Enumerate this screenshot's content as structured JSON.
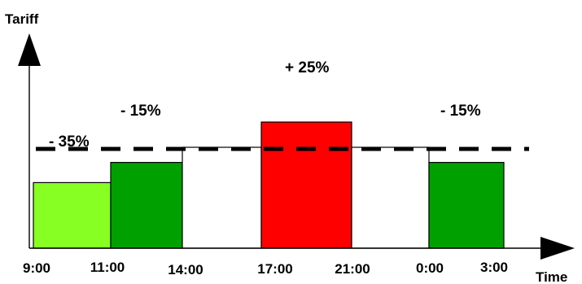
{
  "chart_data": {
    "type": "bar",
    "xlabel": "Time",
    "ylabel": "Tariff",
    "x_ticks": [
      "9:00",
      "11:00",
      "14:00",
      "17:00",
      "21:00",
      "0:00",
      "3:00"
    ],
    "baseline_level": 100,
    "ylim": [
      0,
      150
    ],
    "bars": [
      {
        "from": "9:00",
        "to": "11:00",
        "value": 65,
        "label": "- 35%",
        "color": "#88ff22"
      },
      {
        "from": "11:00",
        "to": "14:00",
        "value": 85,
        "label": "- 15%",
        "color": "#00a000"
      },
      {
        "from": "14:00",
        "to": "17:00",
        "value": 100,
        "label": "",
        "color": "#ffffff"
      },
      {
        "from": "17:00",
        "to": "21:00",
        "value": 125,
        "label": "+ 25%",
        "color": "#ff0000"
      },
      {
        "from": "21:00",
        "to": "0:00",
        "value": 100,
        "label": "",
        "color": "#ffffff"
      },
      {
        "from": "0:00",
        "to": "3:00",
        "value": 85,
        "label": "- 15%",
        "color": "#00a000"
      }
    ]
  }
}
